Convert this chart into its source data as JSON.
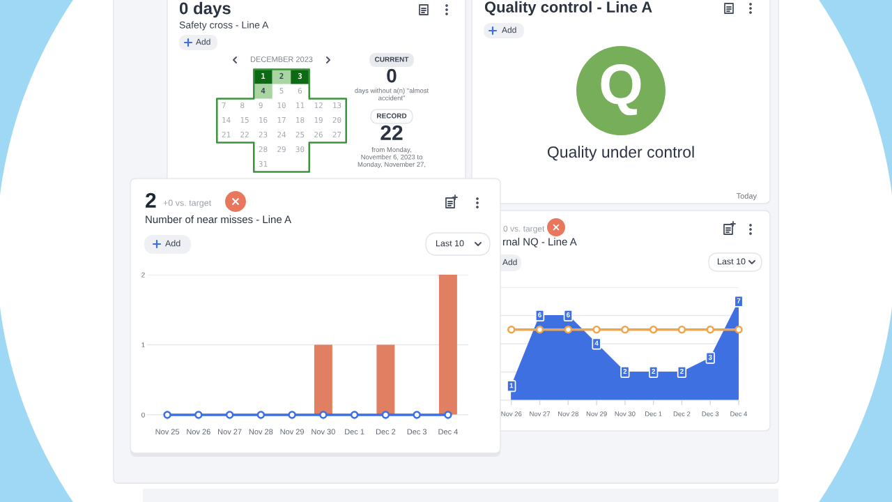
{
  "chart_data": [
    {
      "type": "other",
      "title": "0 days",
      "subtitle": "Safety cross - Line A",
      "annotations": [
        "Add",
        "DECEMBER 2023",
        "CURRENT",
        "0",
        "days without a(n) \"almost\naccident\"",
        "RECORD",
        "22",
        "from Monday,\nNovember 6, 2023 to\nMonday, November 27,",
        "1",
        "2",
        "3",
        "4",
        "5",
        "6",
        "7 8 9 10 11 12 13",
        "14 15 16 17 18 19 20",
        "21 22 23 24 25 26 27",
        "28",
        "29",
        "30",
        "31"
      ],
      "colors": [
        "#0d6a14",
        "#a8d5a1",
        "#0d6a14",
        "#a8d5a1",
        null,
        null,
        null,
        null,
        null,
        null,
        null,
        null,
        null,
        null,
        null,
        null,
        null,
        null,
        null,
        null,
        null,
        null,
        null,
        null,
        null,
        null,
        null,
        null,
        null,
        null,
        null
      ]
    },
    {
      "type": "other",
      "title": "Quality control - Line A",
      "annotations": [
        "Add",
        "Q",
        "Quality under control",
        "Today"
      ]
    },
    {
      "type": "bar",
      "title": "Number of near misses - Line A",
      "annotations": [
        "2",
        "+0 vs. target",
        "Add",
        "Last 10"
      ],
      "categories": [
        "Nov 25",
        "Nov 26",
        "Nov 27",
        "Nov 28",
        "Nov 29",
        "Nov 30",
        "Dec 1",
        "Dec 2",
        "Dec 3",
        "Dec 4"
      ],
      "series": [
        {
          "type": "bar",
          "color": "#e07f61",
          "values": [
            0,
            0,
            0,
            0,
            0,
            1,
            0,
            1,
            0,
            2
          ]
        },
        {
          "type": "line",
          "color": "#3d6ee6",
          "marker": "circle",
          "values": [
            0,
            0,
            0,
            0,
            0,
            0,
            0,
            0,
            0,
            0
          ]
        }
      ],
      "ylim": [
        0,
        2
      ],
      "yticks": [
        0,
        1,
        2
      ],
      "grid": "y"
    },
    {
      "type": "area",
      "title": "rnal NQ - Line A",
      "annotations": [
        "0 vs. target",
        "Add",
        "Last 10"
      ],
      "categories": [
        null,
        "Nov 26",
        "Nov 27",
        "Nov 28",
        "Nov 29",
        "Nov 30",
        "Dec 1",
        "Dec 2",
        "Dec 3",
        "Dec 4"
      ],
      "series": [
        {
          "type": "area",
          "color": "#3f70e2",
          "values": [
            null,
            1,
            6,
            6,
            4,
            2,
            2,
            2,
            3,
            7
          ],
          "value_labels": [
            null,
            "1",
            "6",
            "6",
            "4",
            "2",
            "2",
            "2",
            "3",
            "7"
          ]
        },
        {
          "type": "line",
          "color": "#f0a54a",
          "marker": "circle",
          "values": [
            null,
            5,
            5,
            5,
            5,
            5,
            5,
            5,
            5,
            5
          ]
        }
      ],
      "ylim": [
        0,
        8
      ],
      "yticks": [
        {
          "value": 0,
          "label": null
        },
        {
          "value": 2,
          "label": null
        },
        {
          "value": 4,
          "label": null
        },
        {
          "value": 6,
          "label": null
        },
        {
          "value": 8,
          "label": null
        }
      ],
      "grid": "y",
      "tick_labels": "x"
    }
  ]
}
